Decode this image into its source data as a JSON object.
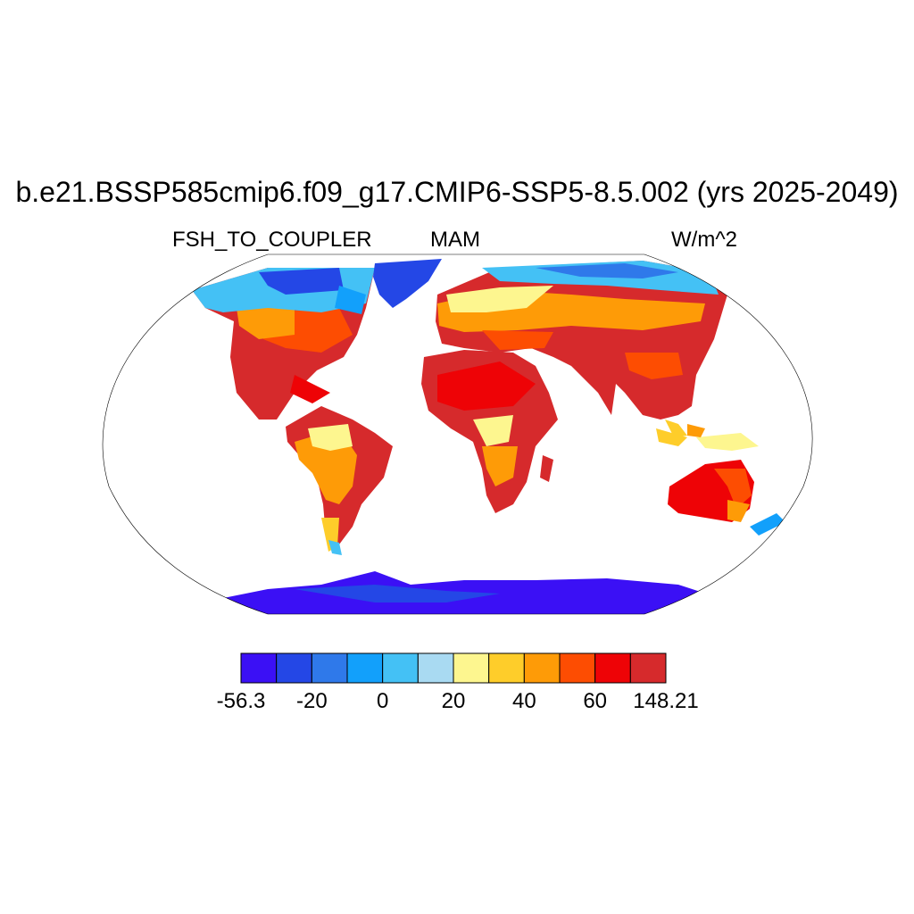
{
  "title": "b.e21.BSSP585cmip6.f09_g17.CMIP6-SSP5-8.5.002 (yrs 2025-2049)",
  "subtitle_left": "FSH_TO_COUPLER",
  "subtitle_center": "MAM",
  "subtitle_right": "W/m^2",
  "colorbar": {
    "colors": [
      "#3b10f5",
      "#2447e6",
      "#2f79ea",
      "#12a0fb",
      "#44c1f5",
      "#a9daf2",
      "#fdf68f",
      "#fecd2a",
      "#fe9b07",
      "#fd4d02",
      "#ee0306",
      "#d62a2c"
    ],
    "tick_labels": [
      "-56.3",
      "-20",
      "0",
      "20",
      "40",
      "60",
      "148.21"
    ]
  }
}
